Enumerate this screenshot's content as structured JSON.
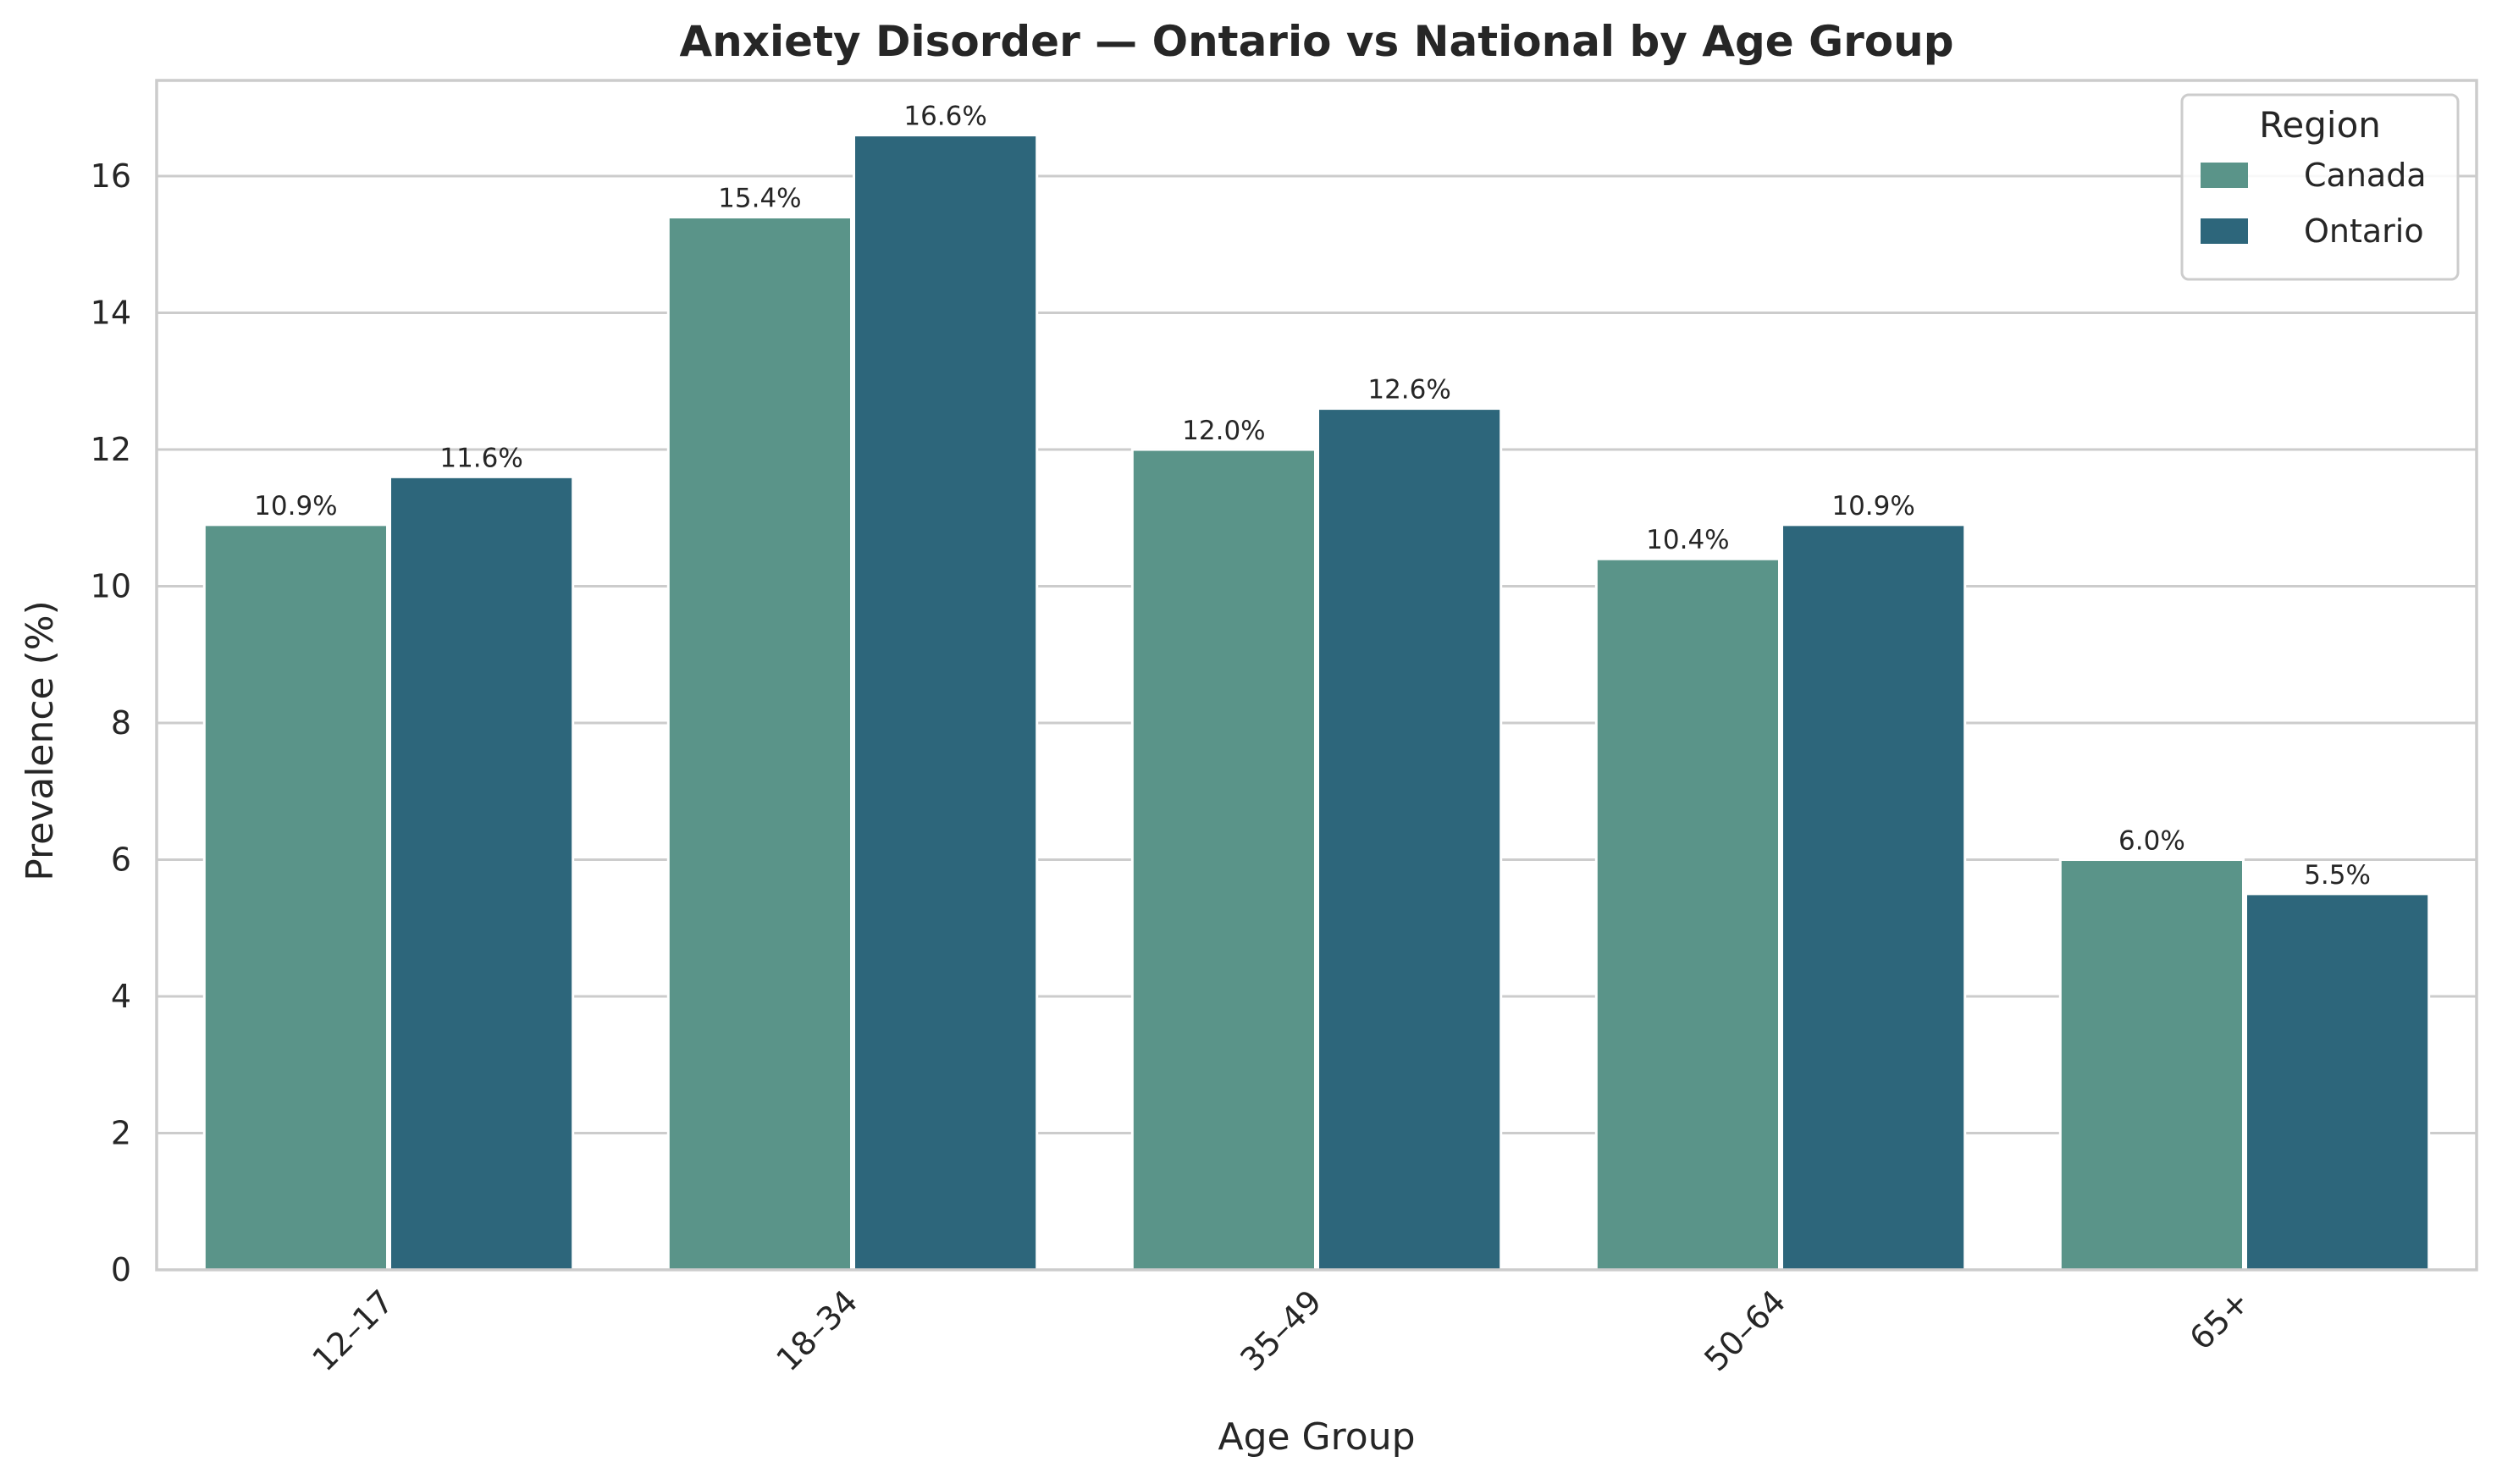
{
  "chart_data": {
    "type": "bar",
    "title": "Anxiety Disorder — Ontario vs National by Age Group",
    "xlabel": "Age Group",
    "ylabel": "Prevalence (%)",
    "categories": [
      "12–17",
      "18–34",
      "35–49",
      "50–64",
      "65+"
    ],
    "series": [
      {
        "name": "Canada",
        "color": "#5a9489",
        "values": [
          10.9,
          15.4,
          12.0,
          10.4,
          6.0
        ],
        "labels": [
          "10.9%",
          "15.4%",
          "12.0%",
          "10.4%",
          "6.0%"
        ]
      },
      {
        "name": "Ontario",
        "color": "#2d667b",
        "values": [
          11.6,
          16.6,
          12.6,
          10.9,
          5.5
        ],
        "labels": [
          "11.6%",
          "16.6%",
          "12.6%",
          "10.9%",
          "5.5%"
        ]
      }
    ],
    "ylim": [
      0,
      17.4
    ],
    "yticks": [
      0,
      2,
      4,
      6,
      8,
      10,
      12,
      14,
      16
    ],
    "grid": "horizontal",
    "legend": {
      "title": "Region",
      "placement": "top-right"
    },
    "xtick_rotation": -45
  }
}
